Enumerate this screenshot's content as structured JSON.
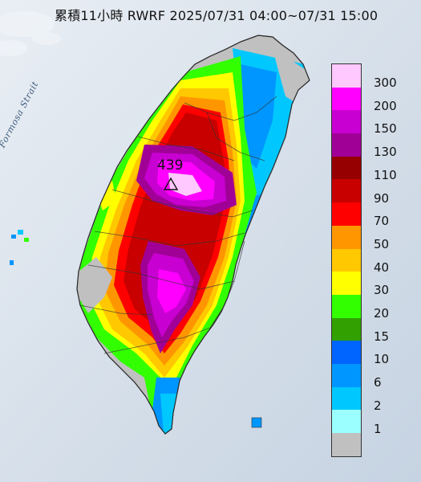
{
  "title": "累積11小時 RWRF 2025/07/31 04:00~07/31 15:00",
  "strait_label": "Formosa Strait",
  "max_value_label": "439",
  "legend": {
    "levels": [
      {
        "label": "300",
        "color": "#ffc8ff"
      },
      {
        "label": "200",
        "color": "#ff00ff"
      },
      {
        "label": "150",
        "color": "#c800d2"
      },
      {
        "label": "130",
        "color": "#a00096"
      },
      {
        "label": "110",
        "color": "#960000"
      },
      {
        "label": "90",
        "color": "#c80000"
      },
      {
        "label": "70",
        "color": "#ff0000"
      },
      {
        "label": "50",
        "color": "#ff9600"
      },
      {
        "label": "40",
        "color": "#ffc800"
      },
      {
        "label": "30",
        "color": "#ffff00"
      },
      {
        "label": "20",
        "color": "#32ff00"
      },
      {
        "label": "15",
        "color": "#32a000"
      },
      {
        "label": "10",
        "color": "#0064ff"
      },
      {
        "label": "6",
        "color": "#0096ff"
      },
      {
        "label": "2",
        "color": "#00c8ff"
      },
      {
        "label": "1",
        "color": "#9bffff"
      },
      {
        "label": "",
        "color": "#c0c0c0"
      }
    ]
  }
}
